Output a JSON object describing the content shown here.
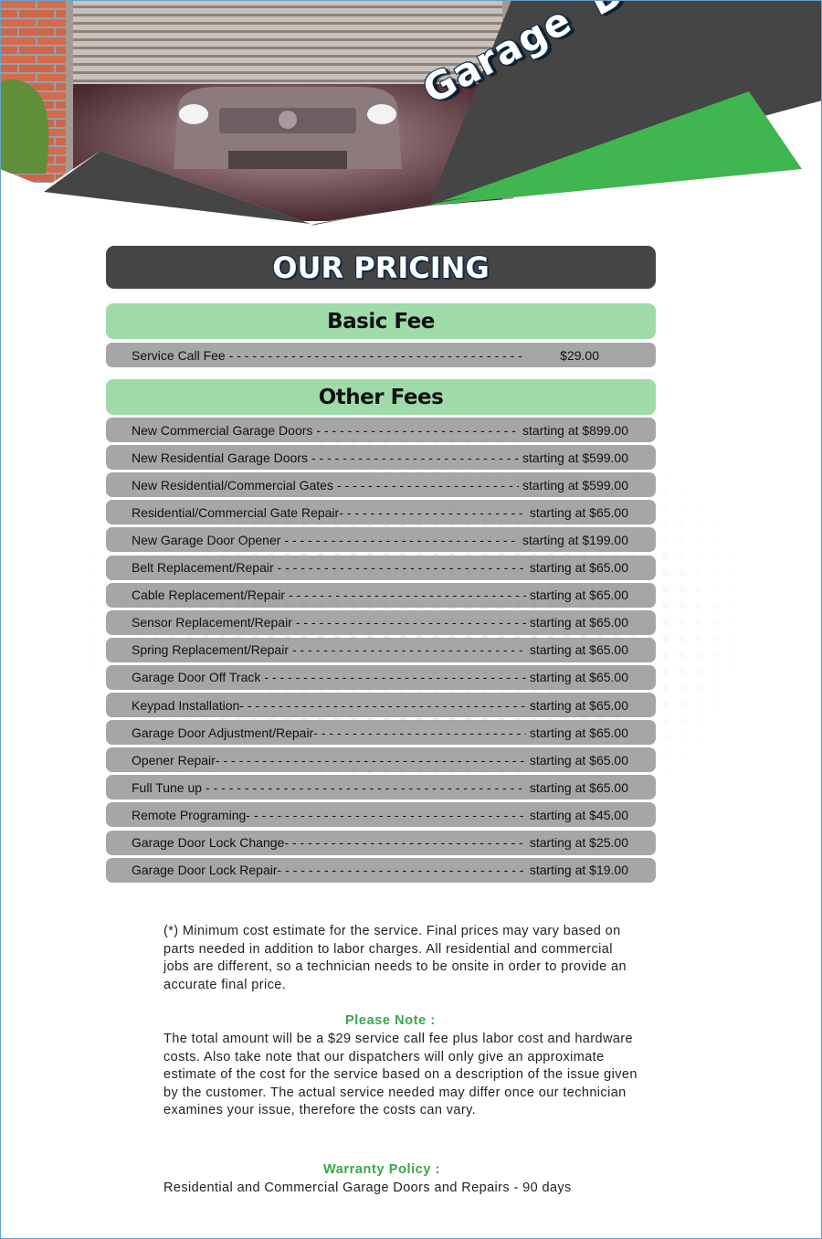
{
  "header": {
    "title": "Garage Door Service",
    "colors": {
      "dark": "#454545",
      "green": "#3fb650",
      "light_green": "#9edba9"
    }
  },
  "pricing": {
    "title": "OUR PRICING",
    "basic": {
      "heading": "Basic Fee",
      "items": [
        {
          "label": "Service Call Fee",
          "price": "$29.00"
        }
      ]
    },
    "other": {
      "heading": "Other Fees",
      "items": [
        {
          "label": "New Commercial Garage Doors",
          "price": "starting at $899.00"
        },
        {
          "label": "New Residential Garage Doors",
          "price": "starting at $599.00"
        },
        {
          "label": "New Residential/Commercial Gates",
          "price": "starting at $599.00"
        },
        {
          "label": "Residential/Commercial Gate Repair-",
          "price": "starting at $65.00"
        },
        {
          "label": "New Garage Door Opener",
          "price": "starting at $199.00"
        },
        {
          "label": "Belt Replacement/Repair",
          "price": "starting at $65.00"
        },
        {
          "label": "Cable Replacement/Repair",
          "price": "starting at $65.00"
        },
        {
          "label": "Sensor Replacement/Repair",
          "price": "starting at $65.00"
        },
        {
          "label": "Spring Replacement/Repair",
          "price": "starting at $65.00"
        },
        {
          "label": "Garage Door Off Track",
          "price": "starting at $65.00"
        },
        {
          "label": "Keypad Installation-",
          "price": "starting at $65.00"
        },
        {
          "label": "Garage Door Adjustment/Repair-",
          "price": "starting at $65.00"
        },
        {
          "label": "Opener Repair-",
          "price": "starting at $65.00"
        },
        {
          "label": "Full Tune up",
          "price": "starting at $65.00"
        },
        {
          "label": "Remote Programing-",
          "price": "starting at $45.00"
        },
        {
          "label": "Garage Door Lock Change-",
          "price": "starting at $25.00"
        },
        {
          "label": "Garage Door Lock Repair-",
          "price": "starting at $19.00"
        }
      ]
    }
  },
  "notes": {
    "disclaimer": "(*) Minimum cost estimate for the service. Final prices may vary based on parts needed in addition to labor charges. All residential and commercial jobs are different, so a technician needs to be onsite in order to provide an accurate final price.",
    "please_note_heading": "Please Note :",
    "please_note_text": "The total amount will be a $29 service call fee plus labor cost and hardware costs. Also take note that our dispatchers will only give an approximate estimate of the cost for the service based on a description of the issue given by the customer. The actual service needed may differ once our technician examines your issue, therefore the costs can vary.",
    "warranty_heading": "Warranty Policy :",
    "warranty_text": "Residential and Commercial Garage Doors and Repairs - 90 days"
  }
}
